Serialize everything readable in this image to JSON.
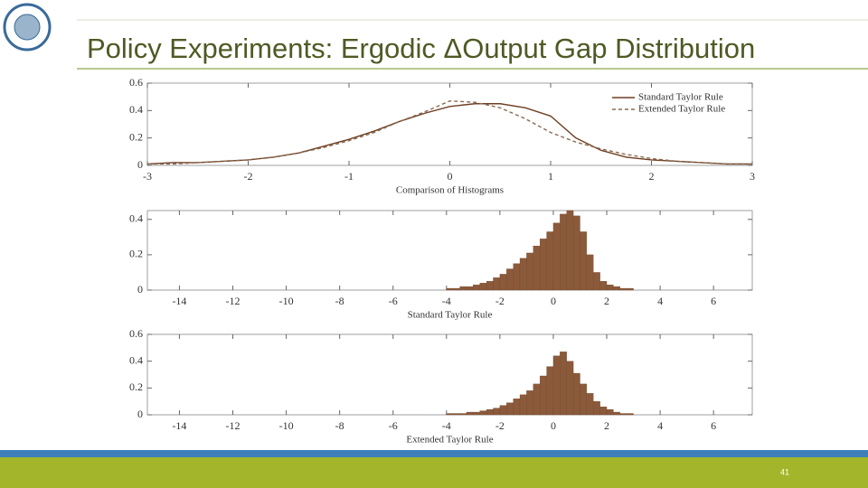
{
  "slide": {
    "title": "Policy Experiments: Ergodic ΔOutput Gap Distribution",
    "page_number": "41"
  },
  "chart_data": [
    {
      "type": "line",
      "xlabel": "Comparison of Histograms",
      "x": [
        -3,
        -2.75,
        -2.5,
        -2.25,
        -2,
        -1.75,
        -1.5,
        -1.25,
        -1,
        -0.75,
        -0.5,
        -0.25,
        0,
        0.25,
        0.5,
        0.75,
        1,
        1.25,
        1.5,
        1.75,
        2,
        2.25,
        2.5,
        2.75,
        3
      ],
      "series": [
        {
          "name": "Standard Taylor Rule",
          "color": "#6e3f22",
          "dashed": false,
          "values": [
            0.01,
            0.02,
            0.02,
            0.03,
            0.04,
            0.06,
            0.09,
            0.14,
            0.19,
            0.25,
            0.32,
            0.38,
            0.43,
            0.45,
            0.45,
            0.42,
            0.36,
            0.2,
            0.11,
            0.06,
            0.04,
            0.03,
            0.02,
            0.01,
            0.01
          ]
        },
        {
          "name": "Extended Taylor Rule",
          "color": "#8a6a52",
          "dashed": true,
          "values": [
            0.01,
            0.01,
            0.02,
            0.03,
            0.04,
            0.06,
            0.09,
            0.13,
            0.18,
            0.24,
            0.32,
            0.39,
            0.47,
            0.46,
            0.42,
            0.34,
            0.24,
            0.17,
            0.12,
            0.08,
            0.05,
            0.03,
            0.02,
            0.01,
            0.01
          ]
        }
      ],
      "xlim": [
        -3,
        3
      ],
      "xticks": [
        -3,
        -2,
        -1,
        0,
        1,
        2,
        3
      ],
      "ylim": [
        0,
        0.6
      ],
      "yticks": [
        0,
        0.2,
        0.4,
        0.6
      ],
      "legend": "upper right"
    },
    {
      "type": "histogram",
      "xlabel": "Standard Taylor Rule",
      "color": "#8b5a3a",
      "bins": [
        -4,
        -3.75,
        -3.5,
        -3.25,
        -3,
        -2.75,
        -2.5,
        -2.25,
        -2,
        -1.75,
        -1.5,
        -1.25,
        -1,
        -0.75,
        -0.5,
        -0.25,
        0,
        0.25,
        0.5,
        0.75,
        1,
        1.25,
        1.5,
        1.75,
        2,
        2.25,
        2.5,
        2.75,
        3
      ],
      "counts": [
        0.01,
        0.01,
        0.02,
        0.02,
        0.03,
        0.04,
        0.05,
        0.07,
        0.09,
        0.12,
        0.15,
        0.18,
        0.21,
        0.25,
        0.29,
        0.33,
        0.38,
        0.43,
        0.45,
        0.42,
        0.33,
        0.2,
        0.1,
        0.05,
        0.03,
        0.02,
        0.01,
        0.01
      ],
      "xlim": [
        -15.2,
        7.45
      ],
      "xticks": [
        -14,
        -12,
        -10,
        -8,
        -6,
        -4,
        -2,
        0,
        2,
        4,
        6
      ],
      "ylim": [
        0,
        0.45
      ],
      "yticks": [
        0,
        0.2,
        0.4
      ]
    },
    {
      "type": "histogram",
      "xlabel": "Extended Taylor Rule",
      "color": "#8b5a3a",
      "bins": [
        -4,
        -3.75,
        -3.5,
        -3.25,
        -3,
        -2.75,
        -2.5,
        -2.25,
        -2,
        -1.75,
        -1.5,
        -1.25,
        -1,
        -0.75,
        -0.5,
        -0.25,
        0,
        0.25,
        0.5,
        0.75,
        1,
        1.25,
        1.5,
        1.75,
        2,
        2.25,
        2.5,
        2.75,
        3
      ],
      "counts": [
        0.01,
        0.01,
        0.01,
        0.02,
        0.02,
        0.03,
        0.04,
        0.05,
        0.07,
        0.09,
        0.12,
        0.15,
        0.18,
        0.23,
        0.29,
        0.36,
        0.44,
        0.47,
        0.4,
        0.31,
        0.23,
        0.16,
        0.1,
        0.06,
        0.04,
        0.02,
        0.01,
        0.01
      ],
      "xlim": [
        -15.2,
        7.45
      ],
      "xticks": [
        -14,
        -12,
        -10,
        -8,
        -6,
        -4,
        -2,
        0,
        2,
        4,
        6
      ],
      "ylim": [
        0,
        0.6
      ],
      "yticks": [
        0,
        0.2,
        0.4,
        0.6
      ]
    }
  ]
}
